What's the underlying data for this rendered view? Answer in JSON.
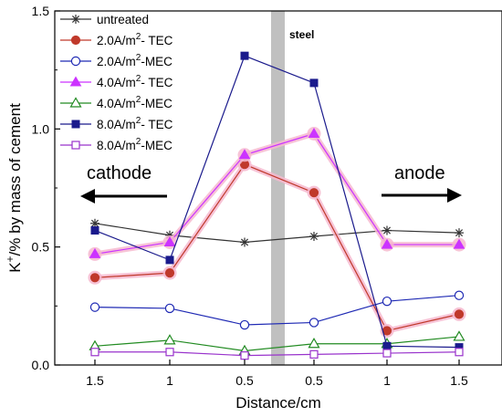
{
  "chart_data": {
    "type": "line",
    "xlabel": "Distance/cm",
    "ylabel_main": "K",
    "ylabel_sup": "+",
    "ylabel_rest": "/% by mass of cement",
    "ylim": [
      0,
      1.5
    ],
    "yticks": [
      "0.0",
      "0.5",
      "1.0",
      "1.5"
    ],
    "categories": [
      "1.5",
      "1",
      "0.5",
      "0.5",
      "1",
      "1.5"
    ],
    "grid": false,
    "legend_position": "top-left",
    "annotations": {
      "cathode": "cathode",
      "anode": "anode",
      "steel": "steel"
    },
    "series": [
      {
        "label_main": "untreated",
        "label_sup": "",
        "label_tail": "",
        "marker": "star",
        "color": "#333333",
        "halo": "",
        "values": [
          0.6,
          0.55,
          0.52,
          0.545,
          0.57,
          0.56
        ]
      },
      {
        "label_main": "2.0A/m",
        "label_sup": "2",
        "label_tail": "- TEC",
        "marker": "circle-filled",
        "color": "#c0392b",
        "halo": "#f6b8cf",
        "values": [
          0.37,
          0.39,
          0.85,
          0.73,
          0.145,
          0.215
        ]
      },
      {
        "label_main": "2.0A/m",
        "label_sup": "2",
        "label_tail": "-MEC",
        "marker": "circle-open",
        "color": "#1f2ab4",
        "halo": "",
        "values": [
          0.245,
          0.24,
          0.17,
          0.18,
          0.27,
          0.295
        ]
      },
      {
        "label_main": "4.0A/m",
        "label_sup": "2",
        "label_tail": "- TEC",
        "marker": "triangle-filled",
        "color": "#cc33ff",
        "halo": "#f6b8cf",
        "values": [
          0.47,
          0.52,
          0.89,
          0.98,
          0.51,
          0.51
        ]
      },
      {
        "label_main": "4.0A/m",
        "label_sup": "2",
        "label_tail": "-MEC",
        "marker": "triangle-open",
        "color": "#228b22",
        "halo": "",
        "values": [
          0.08,
          0.105,
          0.06,
          0.09,
          0.09,
          0.12
        ]
      },
      {
        "label_main": "8.0A/m",
        "label_sup": "2",
        "label_tail": "- TEC",
        "marker": "square-filled",
        "color": "#1a1a8c",
        "halo": "",
        "values": [
          0.57,
          0.445,
          1.31,
          1.195,
          0.08,
          0.075
        ]
      },
      {
        "label_main": "8.0A/m",
        "label_sup": "2",
        "label_tail": "-MEC",
        "marker": "square-open",
        "color": "#9933cc",
        "halo": "",
        "values": [
          0.055,
          0.055,
          0.04,
          0.045,
          0.05,
          0.055
        ]
      }
    ]
  }
}
